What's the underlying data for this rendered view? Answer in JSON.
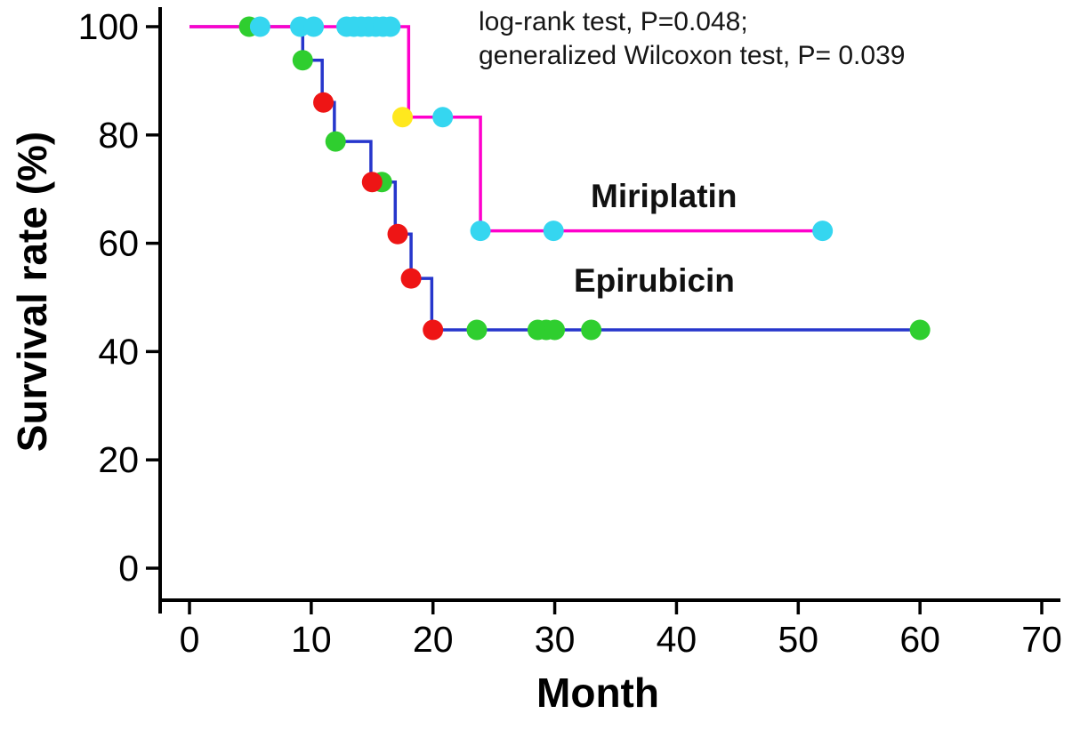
{
  "chart_data": {
    "type": "line",
    "subtype": "kaplan-meier-step",
    "title": "",
    "xlabel": "Month",
    "ylabel": "Survival rate (%)",
    "xlim": [
      0,
      70
    ],
    "ylim": [
      0,
      100
    ],
    "x_ticks": [
      0,
      10,
      20,
      30,
      40,
      50,
      60,
      70
    ],
    "y_ticks": [
      0,
      20,
      40,
      60,
      80,
      100
    ],
    "grid": false,
    "legend_position": "inline-labels",
    "annotation": {
      "line1": "log-rank test, P=0.048;",
      "line2": "generalized Wilcoxon test, P= 0.039"
    },
    "axis_color": "#000000",
    "series": [
      {
        "name": "Miriplatin",
        "line_color": "#FF00CC",
        "step_points": [
          [
            0,
            100
          ],
          [
            18,
            100
          ],
          [
            18,
            83.3
          ],
          [
            23.9,
            83.3
          ],
          [
            23.9,
            62.3
          ],
          [
            52,
            62.3
          ]
        ],
        "markers": [
          {
            "color": "#35D6F0",
            "shape": "dot",
            "points": [
              [
                5.8,
                100
              ],
              [
                9.1,
                100
              ],
              [
                10.2,
                100
              ],
              [
                12.9,
                100
              ],
              [
                13.5,
                100
              ],
              [
                14.1,
                100
              ],
              [
                14.7,
                100
              ],
              [
                15.3,
                100
              ],
              [
                15.9,
                100
              ],
              [
                16.5,
                100
              ],
              [
                20.8,
                83.3
              ],
              [
                23.9,
                62.3
              ],
              [
                29.9,
                62.3
              ],
              [
                52,
                62.3
              ]
            ]
          },
          {
            "color": "#FFE81E",
            "shape": "dot",
            "points": [
              [
                17.5,
                83.3
              ]
            ]
          }
        ]
      },
      {
        "name": "Epirubicin",
        "line_color": "#2636CC",
        "step_points": [
          [
            0,
            100
          ],
          [
            9.3,
            100
          ],
          [
            9.3,
            93.8
          ],
          [
            10.9,
            93.8
          ],
          [
            10.9,
            86
          ],
          [
            11.9,
            86
          ],
          [
            11.9,
            78.8
          ],
          [
            14.9,
            78.8
          ],
          [
            14.9,
            71.3
          ],
          [
            16.9,
            71.3
          ],
          [
            16.9,
            61.7
          ],
          [
            18.2,
            61.7
          ],
          [
            18.2,
            53.5
          ],
          [
            19.9,
            53.5
          ],
          [
            19.9,
            44
          ],
          [
            60,
            44
          ]
        ],
        "markers": [
          {
            "color": "#2FCE2F",
            "shape": "dot",
            "points": [
              [
                4.9,
                100
              ],
              [
                9.3,
                93.8
              ],
              [
                12,
                78.8
              ],
              [
                15.8,
                71.3
              ],
              [
                23.6,
                44
              ],
              [
                28.6,
                44
              ],
              [
                29.3,
                44
              ],
              [
                30,
                44
              ],
              [
                33,
                44
              ],
              [
                60,
                44
              ]
            ]
          },
          {
            "color": "#EE1515",
            "shape": "dot",
            "points": [
              [
                11,
                86
              ],
              [
                15,
                71.3
              ],
              [
                17.1,
                61.7
              ],
              [
                18.2,
                53.5
              ],
              [
                20,
                44
              ]
            ]
          }
        ]
      }
    ]
  }
}
